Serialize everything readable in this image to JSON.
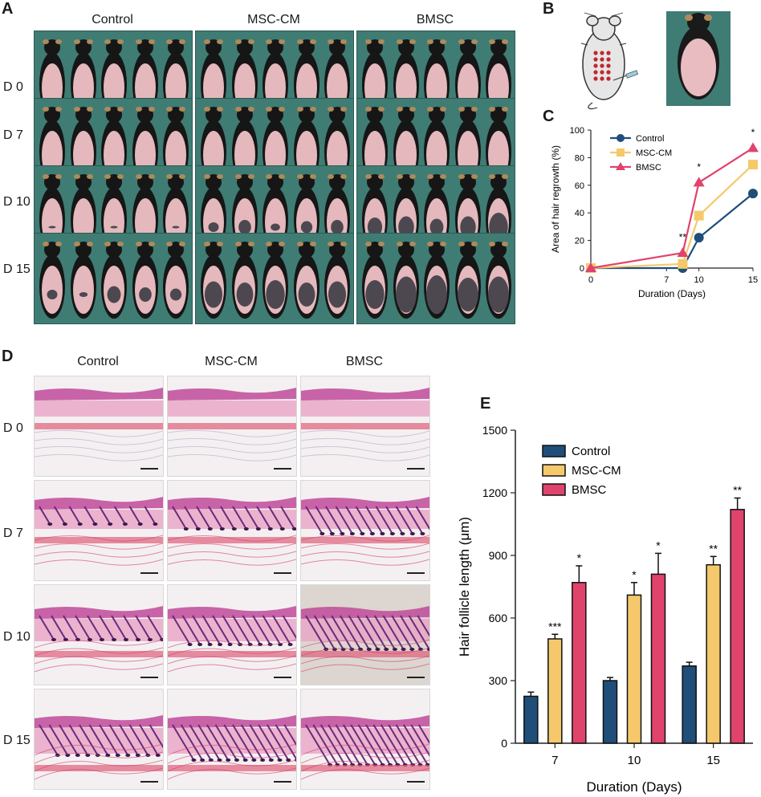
{
  "panels": {
    "A": "A",
    "B": "B",
    "C": "C",
    "D": "D",
    "E": "E"
  },
  "groups": [
    "Control",
    "MSC-CM",
    "BMSC"
  ],
  "days": [
    "D 0",
    "D 7",
    "D 10",
    "D 15"
  ],
  "colors": {
    "control": "#1f4e79",
    "msccm": "#f5c96b",
    "bmsc": "#e0436c",
    "backdrop": "#3f7c74"
  },
  "chart_c": {
    "chart_data": {
      "type": "line",
      "x": [
        0,
        7,
        10,
        15
      ],
      "xticks": [
        "0",
        "7",
        "10",
        "15"
      ],
      "yticks": [
        "0",
        "20",
        "40",
        "60",
        "80",
        "100"
      ],
      "ylim": [
        0,
        100
      ],
      "xlabel": "Duration (Days)",
      "ylabel": "Area of hair regrowth (%)",
      "legend_position": "top-left",
      "series": [
        {
          "name": "Control",
          "marker": "circle",
          "x": [
            0,
            8.5,
            10,
            15
          ],
          "values": [
            0,
            0,
            22,
            54
          ]
        },
        {
          "name": "MSC-CM",
          "marker": "square",
          "x": [
            0,
            8.5,
            10,
            15
          ],
          "values": [
            0,
            3,
            38,
            75
          ]
        },
        {
          "name": "BMSC",
          "marker": "triangle",
          "x": [
            0,
            8.5,
            10,
            15
          ],
          "values": [
            0,
            11,
            62,
            87
          ]
        }
      ],
      "annotations": [
        {
          "x": 8.5,
          "y": 20,
          "text": "**"
        },
        {
          "x": 10,
          "y": 71,
          "text": "*"
        },
        {
          "x": 15,
          "y": 96,
          "text": "*"
        }
      ]
    }
  },
  "chart_e": {
    "chart_data": {
      "type": "bar",
      "categories": [
        "7",
        "10",
        "15"
      ],
      "xlabel": "Duration (Days)",
      "ylabel": "Hair follicle length (μm)",
      "yticks": [
        "0",
        "300",
        "600",
        "900",
        "1200",
        "1500"
      ],
      "ylim": [
        0,
        1500
      ],
      "legend_position": "top-left",
      "series": [
        {
          "name": "Control",
          "values": [
            225,
            300,
            370
          ],
          "errors": [
            20,
            15,
            18
          ],
          "sig": [
            "",
            "",
            ""
          ]
        },
        {
          "name": "MSC-CM",
          "values": [
            500,
            710,
            855
          ],
          "errors": [
            22,
            60,
            40
          ],
          "sig": [
            "***",
            "*",
            "**"
          ]
        },
        {
          "name": "BMSC",
          "values": [
            770,
            810,
            1120
          ],
          "errors": [
            80,
            100,
            55
          ],
          "sig": [
            "*",
            "*",
            "**"
          ]
        }
      ]
    }
  }
}
